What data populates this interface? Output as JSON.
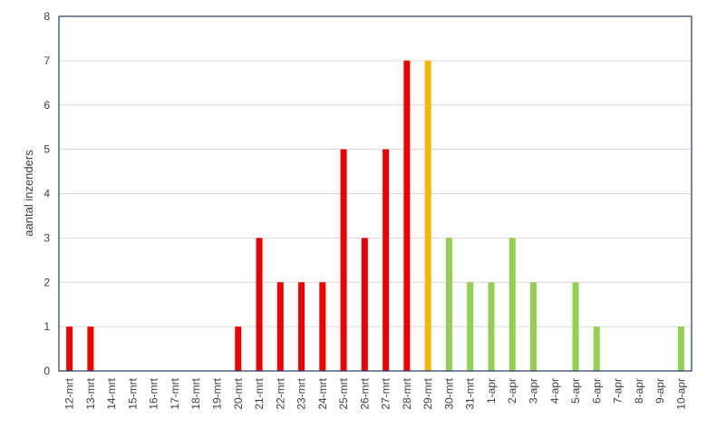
{
  "chart_data": {
    "type": "bar",
    "ylabel": "aantal inzenders",
    "ylim": [
      0,
      8
    ],
    "yticks": [
      0,
      1,
      2,
      3,
      4,
      5,
      6,
      7,
      8
    ],
    "grid": true,
    "categories": [
      "12-mrt",
      "13-mrt",
      "14-mrt",
      "15-mrt",
      "16-mrt",
      "17-mrt",
      "18-mrt",
      "19-mrt",
      "20-mrt",
      "21-mrt",
      "22-mrt",
      "23-mrt",
      "24-mrt",
      "25-mrt",
      "26-mrt",
      "27-mrt",
      "28-mrt",
      "29-mrt",
      "30-mrt",
      "31-mrt",
      "1-apr",
      "2-apr",
      "3-apr",
      "4-apr",
      "5-apr",
      "6-apr",
      "7-apr",
      "8-apr",
      "9-apr",
      "10-apr"
    ],
    "values": [
      1,
      1,
      0,
      0,
      0,
      0,
      0,
      0,
      1,
      3,
      2,
      2,
      2,
      5,
      3,
      5,
      7,
      7,
      3,
      2,
      2,
      3,
      2,
      0,
      2,
      1,
      0,
      0,
      0,
      1
    ],
    "bar_colors": [
      "#ee0000",
      "#ee0000",
      "#ee0000",
      "#ee0000",
      "#ee0000",
      "#ee0000",
      "#ee0000",
      "#ee0000",
      "#ee0000",
      "#ee0000",
      "#ee0000",
      "#ee0000",
      "#ee0000",
      "#ee0000",
      "#ee0000",
      "#ee0000",
      "#ee0000",
      "#f5b800",
      "#92d050",
      "#92d050",
      "#92d050",
      "#92d050",
      "#92d050",
      "#92d050",
      "#92d050",
      "#92d050",
      "#92d050",
      "#92d050",
      "#92d050",
      "#92d050"
    ]
  },
  "colors": {
    "frame": "#1f3864",
    "grid": "#d9d9d9",
    "text": "#404040"
  }
}
